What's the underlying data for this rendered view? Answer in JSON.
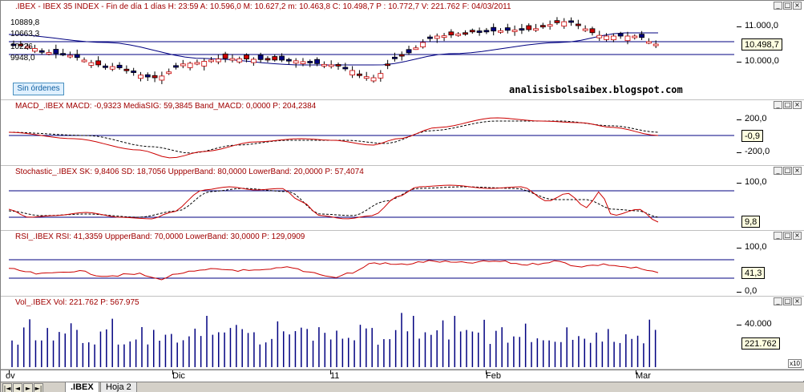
{
  "main": {
    "title": ".IBEX - IBEX 35 INDEX - Fin de día 1 días  H: 23:59  A: 10.596,0  M: 10.627,2  m: 10.463,8  C: 10.498,7  P : 10.772,7  V: 221.762  F: 04/03/2011",
    "axis_labels": [
      "11.000,0",
      "10.000,0"
    ],
    "current_value": "10.498,7",
    "left_labels": [
      "10889,8",
      "10663,3",
      "10226",
      "9948,0"
    ],
    "no_orders_button": "Sin órdenes",
    "watermark": "analisisbolsaibex.blogspot.com"
  },
  "macd": {
    "title": "MACD_.IBEX  MACD: -0,9323  MediaSIG: 59,3845  Band_MACD: 0,0000  P: 204,2384",
    "axis_labels": [
      "200,0",
      "-200,0"
    ],
    "current_value": "-0,9"
  },
  "stoch": {
    "title": "Stochastic_.IBEX  SK: 9,8406  SD: 18,7056  UppperBand: 80,0000  LowerBand: 20,0000  P: 57,4074",
    "axis_labels": [
      "100,0"
    ],
    "current_value": "9,8"
  },
  "rsi": {
    "title": "RSI_.IBEX  RSI: 41,3359  UppperBand: 70,0000  LowerBand: 30,0000  P: 129,0909",
    "axis_labels": [
      "100,0",
      "0,0"
    ],
    "current_value": "41,3"
  },
  "vol": {
    "title": "Vol_.IBEX  Vol: 221.762  P: 567.975",
    "axis_labels": [
      "40.000"
    ],
    "current_value": "221.762",
    "scale_badge": "x10"
  },
  "time_axis": [
    "ov",
    "Dic",
    "11",
    "Feb",
    "Mar"
  ],
  "tabs": [
    ".IBEX",
    "Hoja 2"
  ],
  "nav_buttons": [
    "|◄",
    "◄",
    "►",
    "►|"
  ],
  "window_buttons": [
    "_",
    "□",
    "×"
  ],
  "colors": {
    "title": "#a00000",
    "band_line": "#000080",
    "indicator": "#cc0000",
    "signal": "#000000",
    "volume": "#000080",
    "bear_candle": "#cc0000",
    "bull_candle": "#ffffff",
    "dark_candle": "#000080"
  }
}
